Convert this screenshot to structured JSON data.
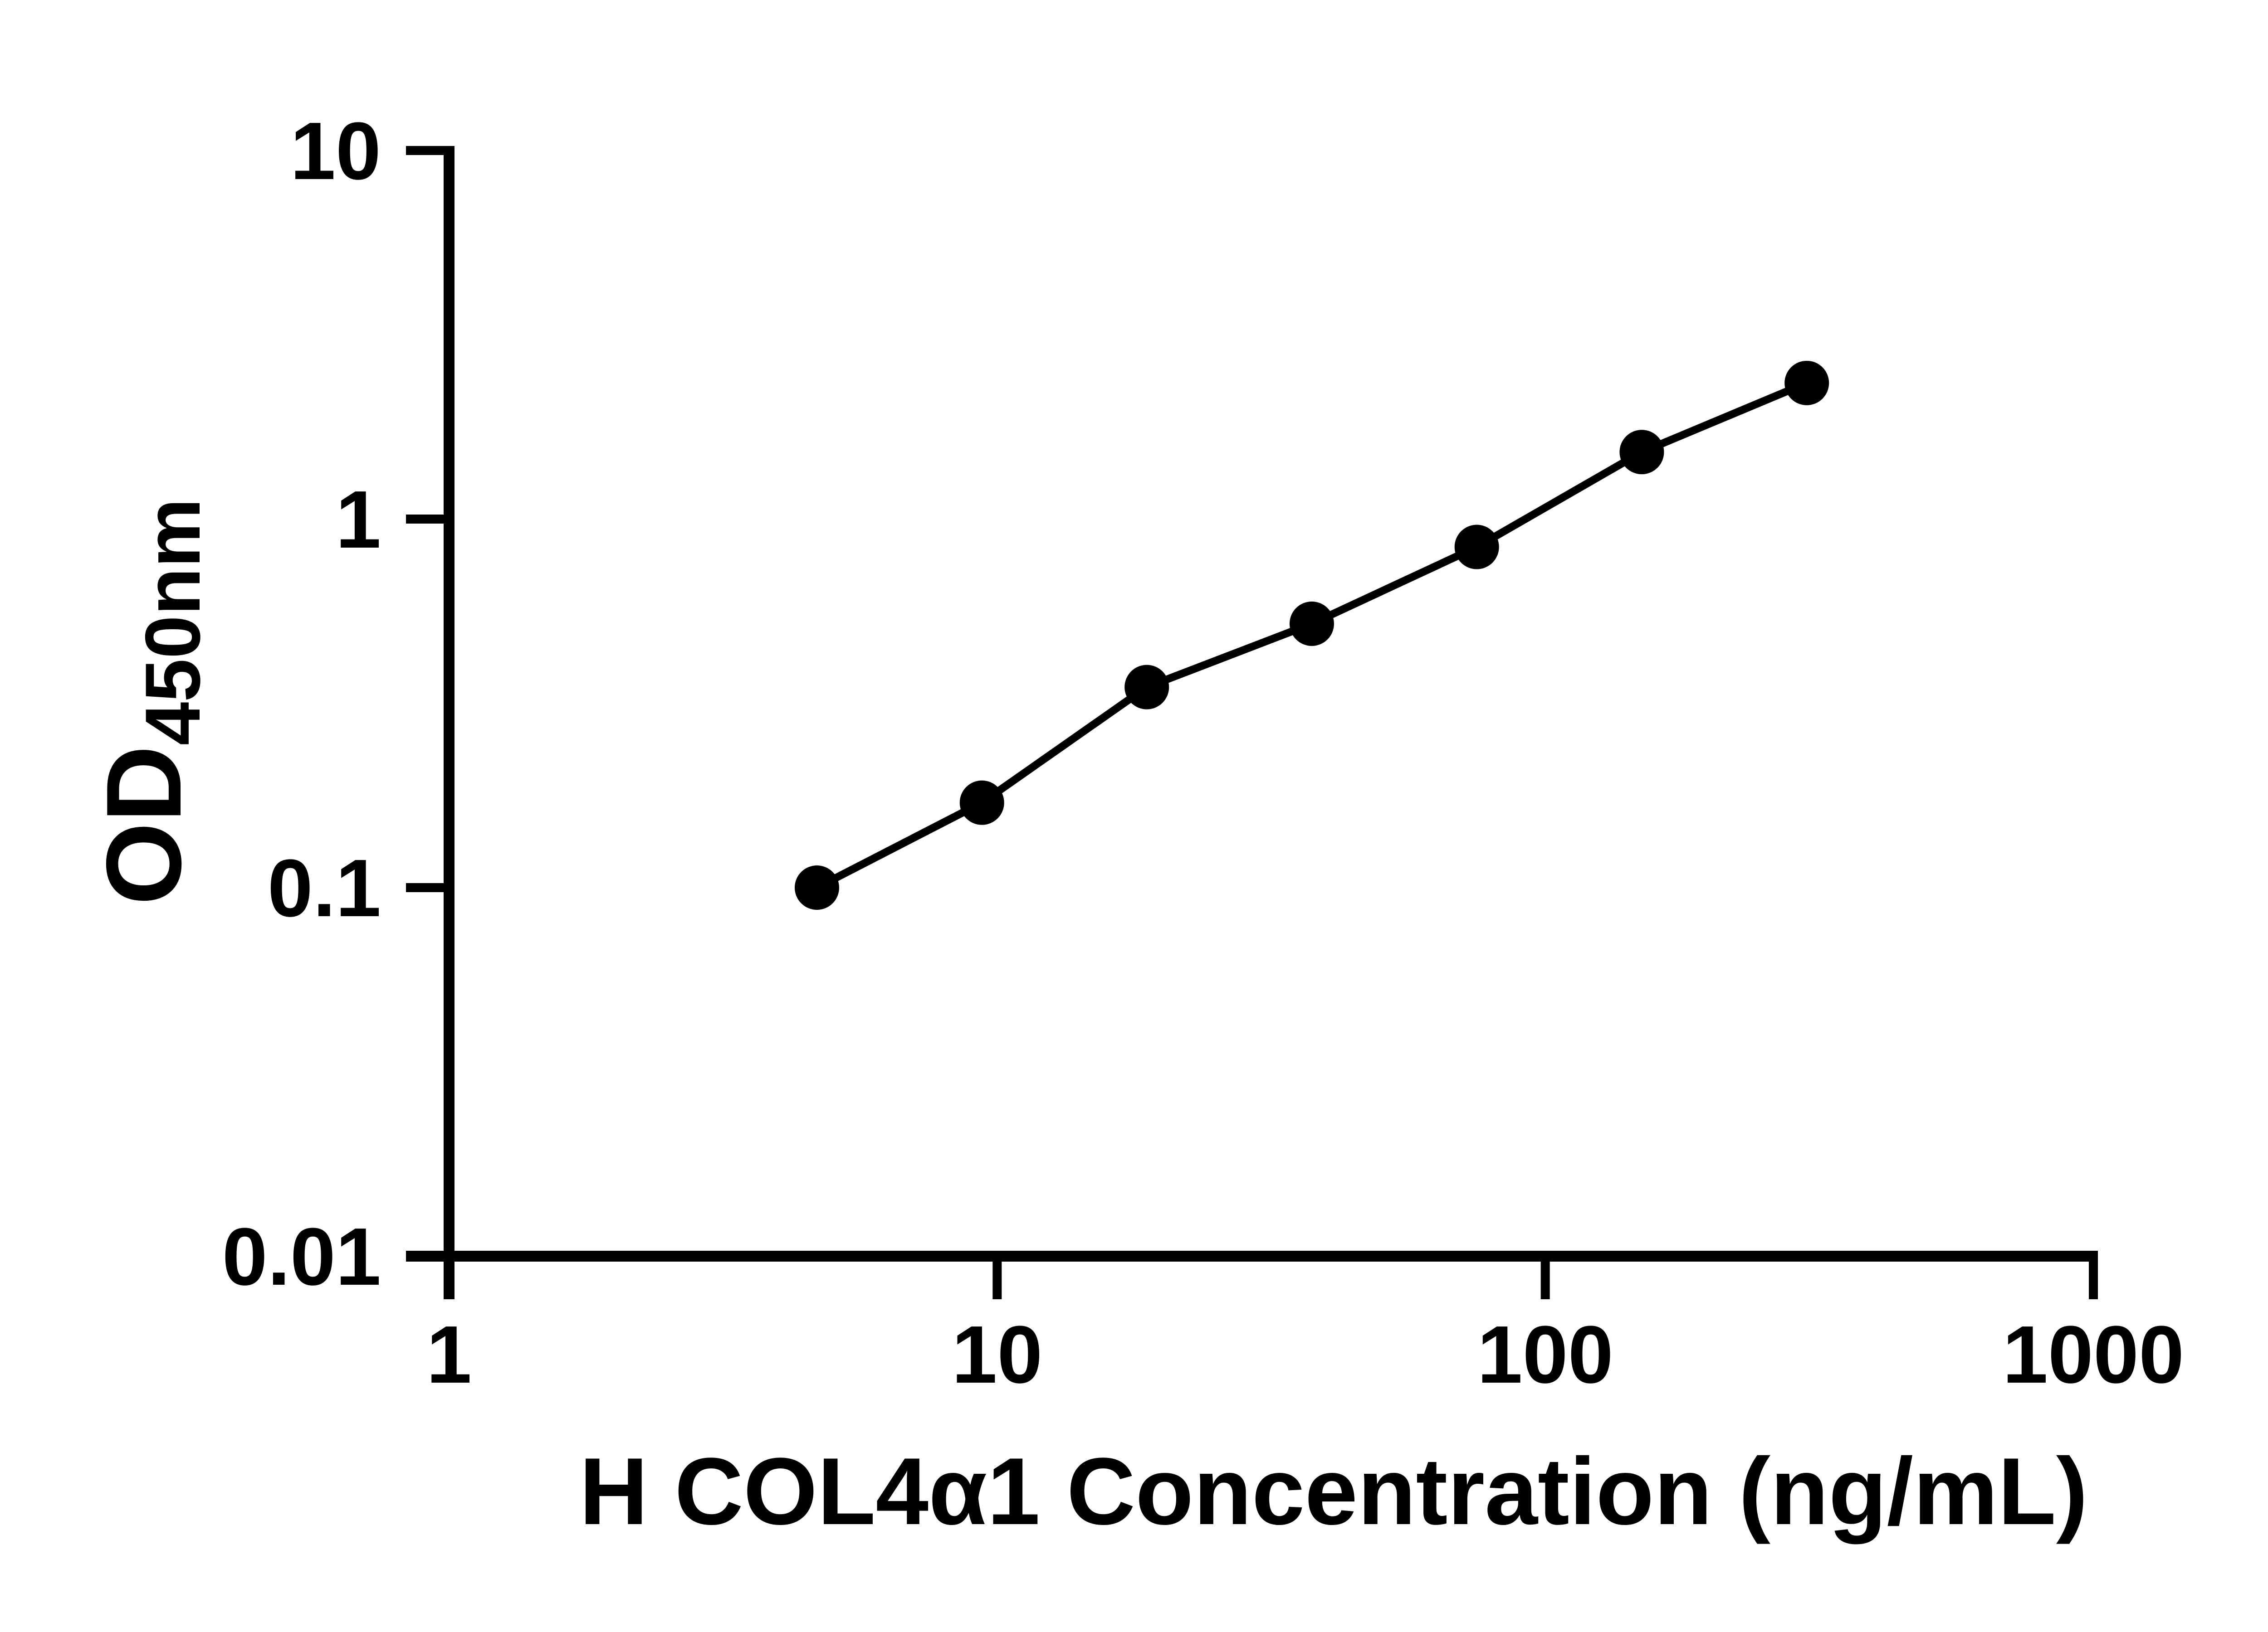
{
  "chart_data": {
    "type": "line",
    "xlabel": "H COL4α1 Concentration (ng/mL)",
    "ylabel_main": "OD",
    "ylabel_sub": "450nm",
    "x_scale": "log10",
    "y_scale": "log10",
    "xlim": [
      1,
      1000
    ],
    "ylim": [
      0.01,
      10
    ],
    "x_ticks": [
      1,
      10,
      100,
      1000
    ],
    "x_tick_labels": [
      "1",
      "10",
      "100",
      "1000"
    ],
    "y_ticks": [
      0.01,
      0.1,
      1,
      10
    ],
    "y_tick_labels": [
      "0.01",
      "0.1",
      "1",
      "10"
    ],
    "grid": false,
    "legend": "none",
    "marker": "filled-circle",
    "line_style": "solid",
    "series": [
      {
        "points": [
          {
            "x": 4.69,
            "y": 0.1
          },
          {
            "x": 9.38,
            "y": 0.17
          },
          {
            "x": 18.75,
            "y": 0.35
          },
          {
            "x": 37.5,
            "y": 0.52
          },
          {
            "x": 75,
            "y": 0.84
          },
          {
            "x": 150,
            "y": 1.52
          },
          {
            "x": 300,
            "y": 2.34
          }
        ]
      }
    ],
    "colors": {
      "foreground": "#000000",
      "background": "#ffffff"
    }
  }
}
